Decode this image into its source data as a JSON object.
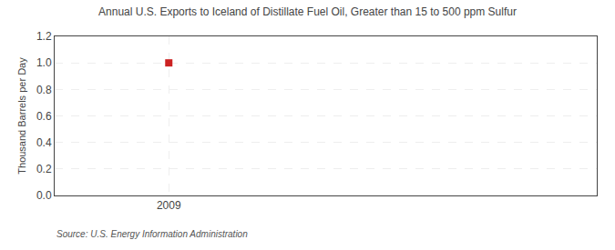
{
  "chart_data": {
    "type": "scatter",
    "title": "Annual U.S. Exports to Iceland of Distillate Fuel Oil, Greater than 15 to 500 ppm Sulfur",
    "ylabel": "Thousand Barrels per Day",
    "annotations": [
      "Source: U.S. Energy Information Administration"
    ],
    "x": [
      2009
    ],
    "values": [
      1.0
    ],
    "color": "#cc2222",
    "marker": "square",
    "xlim": [
      2008.6,
      2010.5
    ],
    "xticks": [
      2009
    ],
    "ylim": [
      0.0,
      1.2
    ],
    "yticks": [
      {
        "value": 0.0,
        "label": "0.0"
      },
      0.2,
      0.4,
      0.6,
      0.8,
      {
        "value": 1.0,
        "label": "1.0"
      },
      1.2
    ],
    "grid": true
  }
}
